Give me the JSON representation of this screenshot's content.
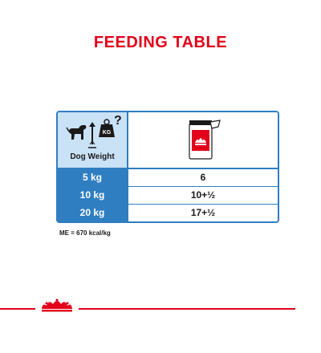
{
  "title": "FEEDING TABLE",
  "table": {
    "header": {
      "left_label": "Dog Weight",
      "left_icons": [
        "dog-icon",
        "weight-kg-icon",
        "question-mark-icon"
      ],
      "kg_badge": "KG",
      "question_mark": "?",
      "right_icon": "pouch-icon"
    },
    "rows": [
      {
        "weight": "5 kg",
        "amount": "6"
      },
      {
        "weight": "10 kg",
        "amount": "10+½"
      },
      {
        "weight": "20 kg",
        "amount": "17+½"
      }
    ]
  },
  "note": "ME = 670 kcal/kg",
  "colors": {
    "brand_red": "#e2001a",
    "table_blue": "#2f7ec1",
    "header_light_blue": "#c9e2f6"
  },
  "footer": {
    "logo_icon": "royal-canin-crown-icon"
  }
}
